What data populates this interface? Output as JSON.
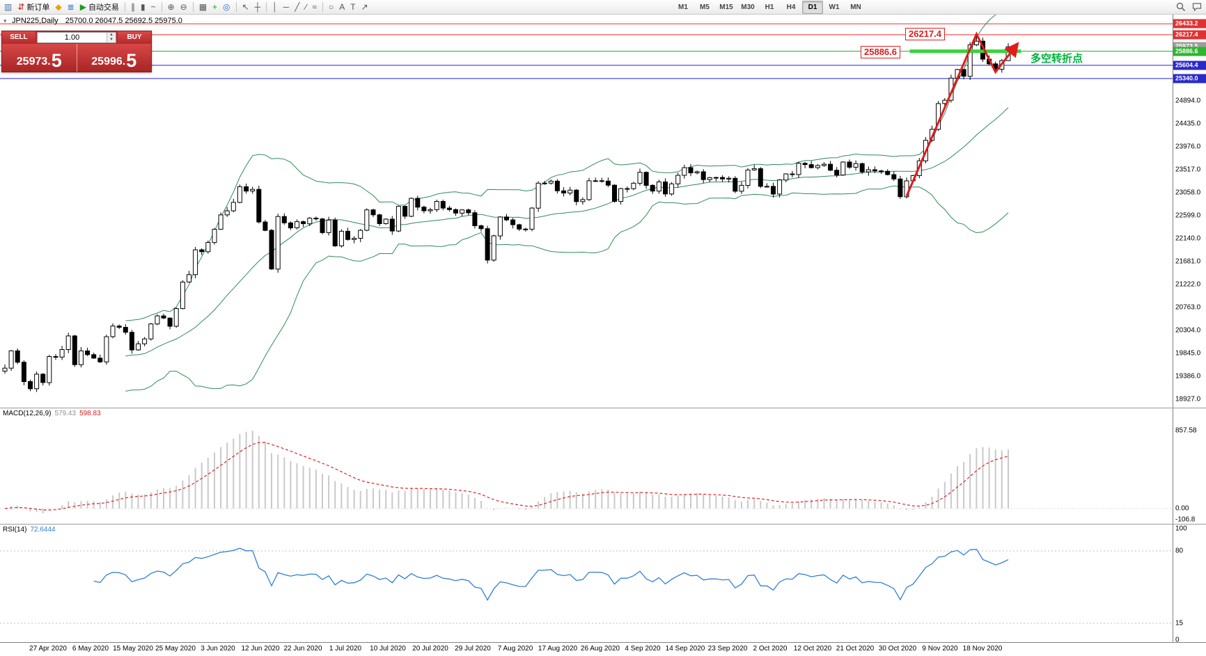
{
  "toolbar": {
    "items": [
      {
        "name": "new-chart",
        "glyph": "▥",
        "color": "#4a6fa5"
      },
      {
        "name": "new-order",
        "glyph": "⇵",
        "color": "#cc2222",
        "label": "新订单"
      },
      {
        "name": "metaeditor",
        "glyph": "◆",
        "color": "#e2a600"
      },
      {
        "name": "market-watch",
        "glyph": "≣",
        "color": "#2f6fd0"
      },
      {
        "name": "autotrading",
        "glyph": "▶",
        "color": "#18a018",
        "label": "自动交易"
      },
      {
        "sep": true
      },
      {
        "name": "bar-chart",
        "glyph": "∥",
        "color": "#555555"
      },
      {
        "name": "candlestick-chart",
        "glyph": "▮",
        "color": "#555555"
      },
      {
        "name": "line-chart",
        "glyph": "~",
        "color": "#555555"
      },
      {
        "sep": true
      },
      {
        "name": "zoom-in",
        "glyph": "⊕",
        "color": "#555555"
      },
      {
        "name": "zoom-out",
        "glyph": "⊖",
        "color": "#555555"
      },
      {
        "sep": true
      },
      {
        "name": "tile-windows",
        "glyph": "▦",
        "color": "#555555"
      },
      {
        "name": "indicators",
        "glyph": "+",
        "color": "#18a018"
      },
      {
        "name": "objects",
        "glyph": "◎",
        "color": "#2f6fd0"
      },
      {
        "sep": true
      },
      {
        "name": "cursor",
        "glyph": "↖",
        "color": "#555555"
      },
      {
        "name": "crosshair",
        "glyph": "┼",
        "color": "#555555"
      },
      {
        "sep": true
      },
      {
        "name": "vertical-line",
        "glyph": "│",
        "color": "#555555"
      },
      {
        "name": "horizontal-line",
        "glyph": "─",
        "color": "#555555"
      },
      {
        "name": "trendline",
        "glyph": "╱",
        "color": "#555555"
      },
      {
        "name": "channel",
        "glyph": "∕",
        "color": "#555555"
      },
      {
        "name": "fibonacci",
        "glyph": "≈",
        "color": "#555555"
      },
      {
        "sep": true
      },
      {
        "name": "shapes",
        "glyph": "○",
        "color": "#555555"
      },
      {
        "name": "text",
        "glyph": "A",
        "color": "#555555"
      },
      {
        "name": "text-label",
        "glyph": "T",
        "color": "#555555"
      },
      {
        "name": "arrow-objects",
        "glyph": "↗",
        "color": "#555555"
      }
    ],
    "timeframes": [
      "M1",
      "M5",
      "M15",
      "M30",
      "H1",
      "H4",
      "D1",
      "W1",
      "MN"
    ],
    "active_timeframe": "D1"
  },
  "order_panel": {
    "collapse_icon": "▾",
    "sell_label": "SELL",
    "buy_label": "BUY",
    "volume": "1.00",
    "spinner_up": "▲",
    "spinner_down": "▼",
    "sell_price_base": "25973.",
    "sell_price_big": "5",
    "buy_price_base": "25996.",
    "buy_price_big": "5"
  },
  "chart": {
    "symbol": "JPN225,Daily",
    "ohlc_text": "25700.0 26047.5 25692.5 25975.0"
  },
  "price_axis": {
    "ticks": [
      "24894.0",
      "24435.0",
      "23976.0",
      "23517.0",
      "23058.0",
      "22599.0",
      "22140.0",
      "21681.0",
      "21222.0",
      "20763.0",
      "20304.0",
      "19845.0",
      "19386.0",
      "18927.0"
    ],
    "tags": [
      {
        "text": "26433.2",
        "color": "#e03232"
      },
      {
        "text": "26217.4",
        "color": "#e03232"
      },
      {
        "text": "25973.5",
        "color": "#9c9c9c"
      },
      {
        "text": "25886.6",
        "color": "#2db52d"
      },
      {
        "text": "25604.4",
        "color": "#2a2ac8"
      },
      {
        "text": "25340.0",
        "color": "#2a2ac8"
      }
    ]
  },
  "macd_panel": {
    "name": "MACD(12,26,9)",
    "main_value": "579.43",
    "signal_value": "598.83",
    "axis": [
      "857.58",
      "0.00",
      "-106.8"
    ]
  },
  "rsi_panel": {
    "name": "RSI(14)",
    "value": "72.6444",
    "axis": [
      "100",
      "80",
      "15",
      "0"
    ],
    "levels": [
      80,
      15
    ]
  },
  "time_axis": {
    "labels": [
      "27 Apr 2020",
      "6 May 2020",
      "15 May 2020",
      "25 May 2020",
      "3 Jun 2020",
      "12 Jun 2020",
      "22 Jun 2020",
      "1 Jul 2020",
      "10 Jul 2020",
      "20 Jul 2020",
      "29 Jul 2020",
      "7 Aug 2020",
      "17 Aug 2020",
      "26 Aug 2020",
      "4 Sep 2020",
      "14 Sep 2020",
      "23 Sep 2020",
      "2 Oct 2020",
      "12 Oct 2020",
      "21 Oct 2020",
      "30 Oct 2020",
      "9 Nov 2020",
      "18 Nov 2020"
    ]
  },
  "annotations": {
    "resistance_label": "26217.4",
    "support_label": "25886.6",
    "turning_point_note": "多空转折点"
  },
  "chart_data": {
    "type": "candlestick",
    "symbol": "JPN225",
    "period": "Daily",
    "closes": [
      19550,
      19897,
      19669,
      19281,
      19138,
      19429,
      19262,
      19783,
      19771,
      19921,
      20194,
      19619,
      19895,
      19820,
      19750,
      19675,
      20179,
      20391,
      20366,
      20267,
      19915,
      20037,
      20134,
      20433,
      20595,
      20552,
      20388,
      20741,
      21271,
      21419,
      21916,
      21878,
      22062,
      22326,
      22614,
      22696,
      22864,
      23178,
      23091,
      23125,
      22473,
      22305,
      21531,
      22582,
      22455,
      22355,
      22479,
      22437,
      22549,
      22534,
      22260,
      22512,
      21995,
      22288,
      22122,
      22146,
      22306,
      22714,
      22615,
      22439,
      22529,
      22291,
      22785,
      22587,
      22946,
      22770,
      22696,
      22718,
      22884,
      22751,
      22720,
      22650,
      22715,
      22657,
      22397,
      22339,
      21710,
      22195,
      22573,
      22514,
      22418,
      22330,
      22329,
      22750,
      23249,
      23250,
      23289,
      23096,
      23051,
      23110,
      22880,
      22920,
      23296,
      23297,
      23290,
      23208,
      22882,
      23140,
      23138,
      23247,
      23466,
      23205,
      23090,
      23274,
      23033,
      23235,
      23406,
      23559,
      23455,
      23476,
      23319,
      23360,
      23362,
      23331,
      23346,
      23087,
      23205,
      23512,
      23539,
      23185,
      23185,
      23030,
      23312,
      23434,
      23422,
      23647,
      23620,
      23559,
      23601,
      23627,
      23507,
      23411,
      23671,
      23567,
      23639,
      23474,
      23517,
      23494,
      23486,
      23419,
      23332,
      22977,
      23295,
      23400,
      23695,
      24105,
      24325,
      24840,
      24906,
      25349,
      25521,
      25386,
      26014,
      26088,
      25728,
      25634,
      25527,
      25700,
      25975
    ],
    "last_ohlc": {
      "open": 25700.0,
      "high": 26047.5,
      "low": 25692.5,
      "close": 25975.0
    },
    "high_overrides": {
      "153": 26217.4
    },
    "levels": [
      {
        "price": 26433.2,
        "color": "#ff2a2a"
      },
      {
        "price": 26217.4,
        "color": "#ff2a2a"
      },
      {
        "price": 25886.6,
        "color": "#22aa22"
      },
      {
        "price": 25604.4,
        "color": "#2424d8"
      },
      {
        "price": 25340.0,
        "color": "#2424d8"
      }
    ],
    "support_segment": {
      "price": 25886.6,
      "i1": 142.5,
      "i2": 160,
      "color": "#35d43a",
      "width": 5
    },
    "trend_arrow": {
      "color": "#e01b1b",
      "width": 3,
      "points": [
        {
          "i": 142,
          "price": 22990
        },
        {
          "i": 153,
          "price": 26230
        },
        {
          "i": 156,
          "price": 25470
        },
        {
          "i": 159.5,
          "price": 26040
        }
      ]
    },
    "indicators": {
      "bollinger": {
        "period": 20,
        "deviation": 2,
        "color": "#2e8b57"
      },
      "macd": {
        "fast": 12,
        "slow": 26,
        "signal": 9,
        "main": 579.43,
        "signal_value": 598.83
      },
      "rsi": {
        "period": 14,
        "current": 72.6444
      }
    },
    "y_axis": {
      "tick_step": 459,
      "top_tick": 24894.0,
      "bottom_tick": 18927.0
    }
  }
}
